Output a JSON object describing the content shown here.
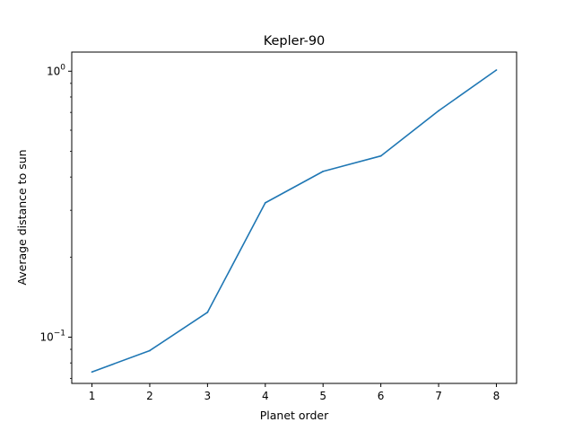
{
  "chart_data": {
    "type": "line",
    "title": "Kepler-90",
    "xlabel": "Planet order",
    "ylabel": "Average distance to sun",
    "yscale": "log",
    "xlim": [
      0.65,
      8.35
    ],
    "ylim": [
      0.067,
      1.18
    ],
    "x": [
      1,
      2,
      3,
      4,
      5,
      6,
      7,
      8
    ],
    "xticks": [
      1,
      2,
      3,
      4,
      5,
      6,
      7,
      8
    ],
    "yticks": [
      {
        "value": 0.1,
        "base": "10",
        "exp": "−1"
      },
      {
        "value": 1.0,
        "base": "10",
        "exp": "0"
      }
    ],
    "series": [
      {
        "values": [
          0.074,
          0.089,
          0.124,
          0.32,
          0.42,
          0.48,
          0.71,
          1.01
        ],
        "color": "#1f77b4"
      }
    ],
    "grid": false,
    "legend": "none"
  }
}
